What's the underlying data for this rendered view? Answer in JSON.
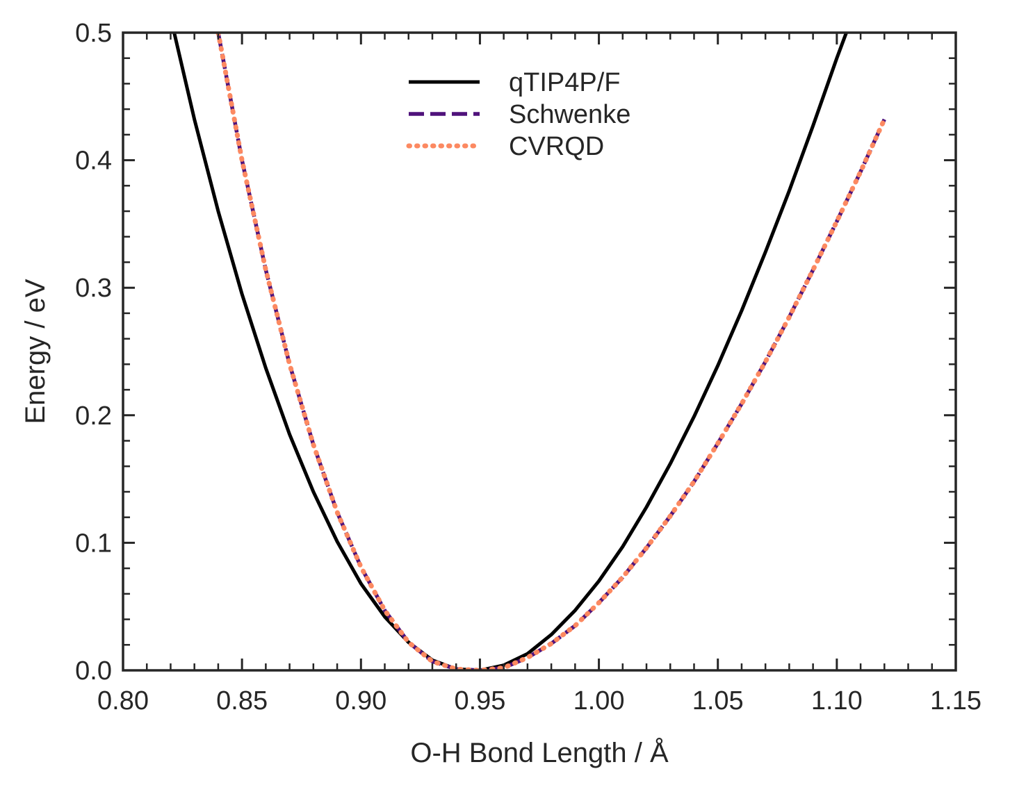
{
  "chart_data": {
    "type": "line",
    "xlabel": "O-H Bond Length / Å",
    "ylabel": "Energy / eV",
    "xlim": [
      0.8,
      1.15
    ],
    "ylim": [
      0.0,
      0.5
    ],
    "x_major_ticks": [
      0.8,
      0.85,
      0.9,
      0.95,
      1.0,
      1.05,
      1.1,
      1.15
    ],
    "x_tick_labels": [
      "0.80",
      "0.85",
      "0.90",
      "0.95",
      "1.00",
      "1.05",
      "1.10",
      "1.15"
    ],
    "x_minor_step": 0.01,
    "y_major_ticks": [
      0.0,
      0.1,
      0.2,
      0.3,
      0.4,
      0.5
    ],
    "y_tick_labels": [
      "0.0",
      "0.1",
      "0.2",
      "0.3",
      "0.4",
      "0.5"
    ],
    "y_minor_step": 0.02,
    "grid": false,
    "legend_position": "top-center",
    "series": [
      {
        "name": "qTIP4P/F",
        "style": "solid",
        "color": "#000000",
        "x": [
          0.82,
          0.83,
          0.84,
          0.85,
          0.86,
          0.87,
          0.88,
          0.89,
          0.9,
          0.91,
          0.92,
          0.93,
          0.94,
          0.95,
          0.96,
          0.97,
          0.98,
          0.99,
          1.0,
          1.01,
          1.02,
          1.03,
          1.04,
          1.05,
          1.06,
          1.07,
          1.08,
          1.09,
          1.1,
          1.105
        ],
        "y": [
          0.512,
          0.432,
          0.36,
          0.295,
          0.237,
          0.185,
          0.14,
          0.101,
          0.068,
          0.042,
          0.022,
          0.008,
          0.001,
          0.0,
          0.004,
          0.013,
          0.028,
          0.047,
          0.07,
          0.097,
          0.128,
          0.162,
          0.199,
          0.239,
          0.282,
          0.328,
          0.376,
          0.427,
          0.48,
          0.505
        ]
      },
      {
        "name": "Schwenke",
        "style": "dashed",
        "color": "#4f127b",
        "x": [
          0.84,
          0.85,
          0.86,
          0.87,
          0.88,
          0.89,
          0.9,
          0.91,
          0.92,
          0.93,
          0.94,
          0.95,
          0.96,
          0.97,
          0.98,
          0.99,
          1.0,
          1.01,
          1.02,
          1.03,
          1.04,
          1.05,
          1.06,
          1.07,
          1.08,
          1.09,
          1.1,
          1.11,
          1.12
        ],
        "y": [
          0.5,
          0.4,
          0.314,
          0.24,
          0.177,
          0.124,
          0.081,
          0.047,
          0.022,
          0.007,
          0.001,
          0.0,
          0.002,
          0.01,
          0.021,
          0.035,
          0.053,
          0.073,
          0.096,
          0.121,
          0.148,
          0.178,
          0.209,
          0.242,
          0.277,
          0.314,
          0.352,
          0.391,
          0.432
        ]
      },
      {
        "name": "CVRQD",
        "style": "dotted",
        "color": "#fc8961",
        "x": [
          0.84,
          0.85,
          0.86,
          0.87,
          0.88,
          0.89,
          0.9,
          0.91,
          0.92,
          0.93,
          0.94,
          0.95,
          0.96,
          0.97,
          0.98,
          0.99,
          1.0,
          1.01,
          1.02,
          1.03,
          1.04,
          1.05,
          1.06,
          1.07,
          1.08,
          1.09,
          1.1,
          1.11,
          1.12
        ],
        "y": [
          0.5,
          0.4,
          0.314,
          0.24,
          0.177,
          0.124,
          0.081,
          0.047,
          0.022,
          0.007,
          0.001,
          0.0,
          0.002,
          0.01,
          0.021,
          0.035,
          0.053,
          0.073,
          0.096,
          0.121,
          0.148,
          0.178,
          0.209,
          0.242,
          0.277,
          0.314,
          0.352,
          0.391,
          0.432
        ]
      }
    ]
  }
}
